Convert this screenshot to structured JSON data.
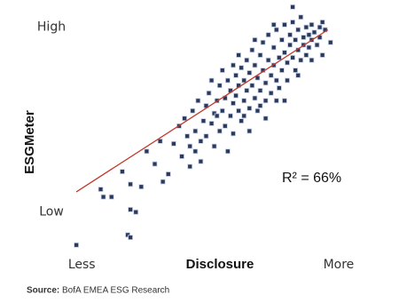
{
  "chart_data": {
    "type": "scatter",
    "x_label": "Disclosure",
    "y_label": "ESGMeter",
    "annotation": "R² = 66%",
    "source_label": "Source:",
    "source": "BofA EMEA ESG Research",
    "xlim": [
      0,
      100
    ],
    "ylim": [
      0,
      100
    ],
    "xticks": [
      {
        "value": 4,
        "label": "Less"
      },
      {
        "value": 99,
        "label": "More"
      }
    ],
    "yticks": [
      {
        "value": 18,
        "label": "Low"
      },
      {
        "value": 91,
        "label": "High"
      }
    ],
    "grid": false,
    "color": "#2b3a5c",
    "trend_line": {
      "color": "#c0392b",
      "x": [
        2,
        95
      ],
      "y": [
        26,
        90
      ]
    },
    "x": [
      2,
      21,
      22,
      22,
      24,
      11,
      12,
      15,
      19,
      22,
      26,
      82,
      94,
      93,
      96,
      31,
      28,
      34,
      36,
      33,
      38,
      40,
      41,
      42,
      43,
      44,
      45,
      46,
      47,
      48,
      49,
      50,
      50,
      51,
      52,
      53,
      53,
      54,
      55,
      55,
      56,
      57,
      57,
      58,
      59,
      59,
      60,
      60,
      61,
      61,
      62,
      62,
      63,
      63,
      64,
      64,
      65,
      65,
      66,
      66,
      67,
      67,
      68,
      68,
      69,
      69,
      70,
      70,
      71,
      71,
      72,
      72,
      73,
      73,
      74,
      74,
      75,
      75,
      76,
      76,
      77,
      77,
      78,
      78,
      79,
      79,
      80,
      80,
      81,
      81,
      82,
      82,
      83,
      83,
      84,
      84,
      85,
      85,
      86,
      86,
      87,
      87,
      88,
      88,
      89,
      89,
      90,
      91,
      92,
      92,
      93,
      89,
      79,
      72,
      66,
      58,
      48,
      44,
      52,
      56,
      62,
      68,
      75,
      60,
      70,
      64,
      76,
      84,
      54,
      46
    ],
    "values": [
      5,
      9,
      8,
      19,
      18,
      27,
      24,
      24,
      34,
      29,
      28,
      99,
      90,
      80,
      85,
      37,
      42,
      30,
      33,
      46,
      45,
      52,
      40,
      55,
      48,
      44,
      58,
      50,
      62,
      46,
      54,
      60,
      48,
      65,
      53,
      57,
      44,
      62,
      50,
      68,
      58,
      63,
      52,
      70,
      56,
      66,
      61,
      49,
      72,
      64,
      58,
      68,
      75,
      54,
      62,
      70,
      66,
      78,
      59,
      73,
      68,
      82,
      63,
      76,
      71,
      58,
      80,
      66,
      74,
      85,
      69,
      62,
      78,
      88,
      72,
      65,
      83,
      76,
      70,
      90,
      79,
      67,
      86,
      74,
      81,
      92,
      77,
      70,
      88,
      84,
      79,
      93,
      86,
      74,
      90,
      82,
      95,
      78,
      87,
      84,
      91,
      80,
      88,
      83,
      92,
      86,
      89,
      84,
      91,
      87,
      93,
      78,
      62,
      55,
      50,
      42,
      38,
      36,
      70,
      74,
      80,
      86,
      92,
      76,
      60,
      56,
      62,
      72,
      56,
      42
    ]
  }
}
